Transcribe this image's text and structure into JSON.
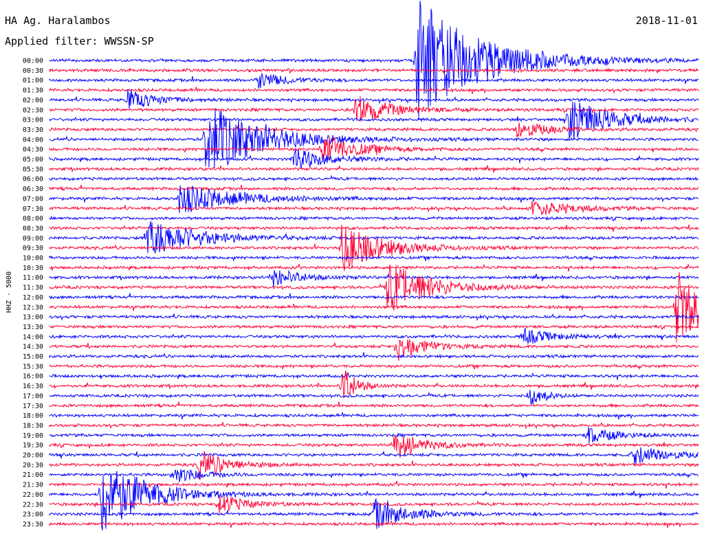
{
  "header": {
    "station": "HA Ag. Haralambos",
    "filter": "Applied filter: WWSSN-SP",
    "date": "2018-11-01"
  },
  "chart_data": {
    "type": "line",
    "title": "HA Ag. Haralambos",
    "subtitle": "Applied filter: WWSSN-SP",
    "date": "2018-11-01",
    "ylabel": "HHZ - 5000",
    "tick_labels": [
      "00:00",
      "00:30",
      "01:00",
      "01:30",
      "02:00",
      "02:30",
      "03:00",
      "03:30",
      "04:00",
      "04:30",
      "05:00",
      "05:30",
      "06:00",
      "06:30",
      "07:00",
      "07:30",
      "08:00",
      "08:30",
      "09:00",
      "09:30",
      "10:00",
      "10:30",
      "11:00",
      "11:30",
      "12:00",
      "12:30",
      "13:00",
      "13:30",
      "14:00",
      "14:30",
      "15:00",
      "15:30",
      "16:00",
      "16:30",
      "17:00",
      "17:30",
      "18:00",
      "18:30",
      "19:00",
      "19:30",
      "20:00",
      "20:30",
      "21:00",
      "21:30",
      "22:00",
      "22:30",
      "23:00",
      "23:30"
    ],
    "colors": [
      "#0000ff",
      "#ff0033"
    ],
    "events": [
      {
        "trace": 0,
        "pos": 0.565,
        "amp": 95,
        "dur": 0.09
      },
      {
        "trace": 2,
        "pos": 0.32,
        "amp": 12,
        "dur": 0.04
      },
      {
        "trace": 4,
        "pos": 0.12,
        "amp": 16,
        "dur": 0.04
      },
      {
        "trace": 5,
        "pos": 0.47,
        "amp": 22,
        "dur": 0.05
      },
      {
        "trace": 6,
        "pos": 0.8,
        "amp": 32,
        "dur": 0.06
      },
      {
        "trace": 7,
        "pos": 0.72,
        "amp": 14,
        "dur": 0.04
      },
      {
        "trace": 8,
        "pos": 0.24,
        "amp": 55,
        "dur": 0.08
      },
      {
        "trace": 9,
        "pos": 0.42,
        "amp": 22,
        "dur": 0.05
      },
      {
        "trace": 10,
        "pos": 0.375,
        "amp": 16,
        "dur": 0.05
      },
      {
        "trace": 14,
        "pos": 0.2,
        "amp": 22,
        "dur": 0.08
      },
      {
        "trace": 15,
        "pos": 0.74,
        "amp": 12,
        "dur": 0.06
      },
      {
        "trace": 18,
        "pos": 0.15,
        "amp": 30,
        "dur": 0.07
      },
      {
        "trace": 19,
        "pos": 0.45,
        "amp": 35,
        "dur": 0.06
      },
      {
        "trace": 22,
        "pos": 0.345,
        "amp": 14,
        "dur": 0.04
      },
      {
        "trace": 23,
        "pos": 0.52,
        "amp": 40,
        "dur": 0.06
      },
      {
        "trace": 25,
        "pos": 0.965,
        "amp": 55,
        "dur": 0.05
      },
      {
        "trace": 28,
        "pos": 0.73,
        "amp": 12,
        "dur": 0.04
      },
      {
        "trace": 29,
        "pos": 0.535,
        "amp": 22,
        "dur": 0.04
      },
      {
        "trace": 33,
        "pos": 0.45,
        "amp": 30,
        "dur": 0.02
      },
      {
        "trace": 34,
        "pos": 0.74,
        "amp": 16,
        "dur": 0.02
      },
      {
        "trace": 38,
        "pos": 0.83,
        "amp": 12,
        "dur": 0.04
      },
      {
        "trace": 39,
        "pos": 0.53,
        "amp": 22,
        "dur": 0.04
      },
      {
        "trace": 40,
        "pos": 0.9,
        "amp": 14,
        "dur": 0.05
      },
      {
        "trace": 41,
        "pos": 0.23,
        "amp": 22,
        "dur": 0.04
      },
      {
        "trace": 42,
        "pos": 0.19,
        "amp": 12,
        "dur": 0.04
      },
      {
        "trace": 44,
        "pos": 0.08,
        "amp": 60,
        "dur": 0.06
      },
      {
        "trace": 45,
        "pos": 0.26,
        "amp": 14,
        "dur": 0.04
      },
      {
        "trace": 46,
        "pos": 0.5,
        "amp": 22,
        "dur": 0.05
      }
    ]
  }
}
